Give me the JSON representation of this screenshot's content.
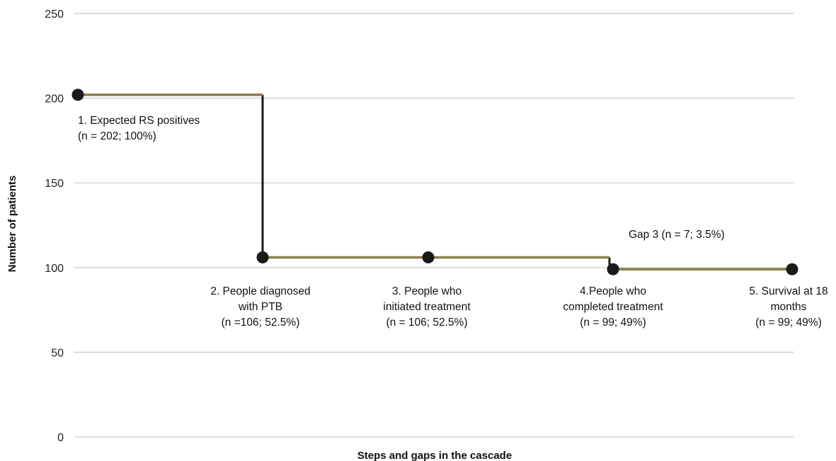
{
  "chart_data": {
    "type": "line",
    "title": "",
    "xlabel": "Steps and gaps in the cascade",
    "ylabel": "Number of patients",
    "ylim": [
      0,
      250
    ],
    "yticks": [
      0,
      50,
      100,
      150,
      200,
      250
    ],
    "grid": true,
    "colors": {
      "step_line": "#8b7d4a",
      "drop_line": "#1a1a1a",
      "marker": "#1a1a1a",
      "grid": "#c8c8c8"
    },
    "points": [
      {
        "step": 1,
        "value": 202,
        "label": [
          "1. Expected RS positives",
          "(n = 202; 100%)"
        ]
      },
      {
        "step": 2,
        "value": 106,
        "label": [
          "2. People diagnosed",
          "with PTB",
          "(n =106; 52.5%)"
        ]
      },
      {
        "step": 3,
        "value": 106,
        "label": [
          "3. People who",
          "initiated treatment",
          "(n = 106; 52.5%)"
        ]
      },
      {
        "step": 4,
        "value": 99,
        "label": [
          "4.People who",
          "completed treatment",
          "(n = 99; 49%)"
        ]
      },
      {
        "step": 5,
        "value": 99,
        "label": [
          "5. Survival at 18",
          "months",
          "(n = 99; 49%)"
        ]
      }
    ],
    "annotations": [
      {
        "text": "Gap 3 (n = 7; 3.5%)",
        "near_step": 4
      }
    ]
  }
}
